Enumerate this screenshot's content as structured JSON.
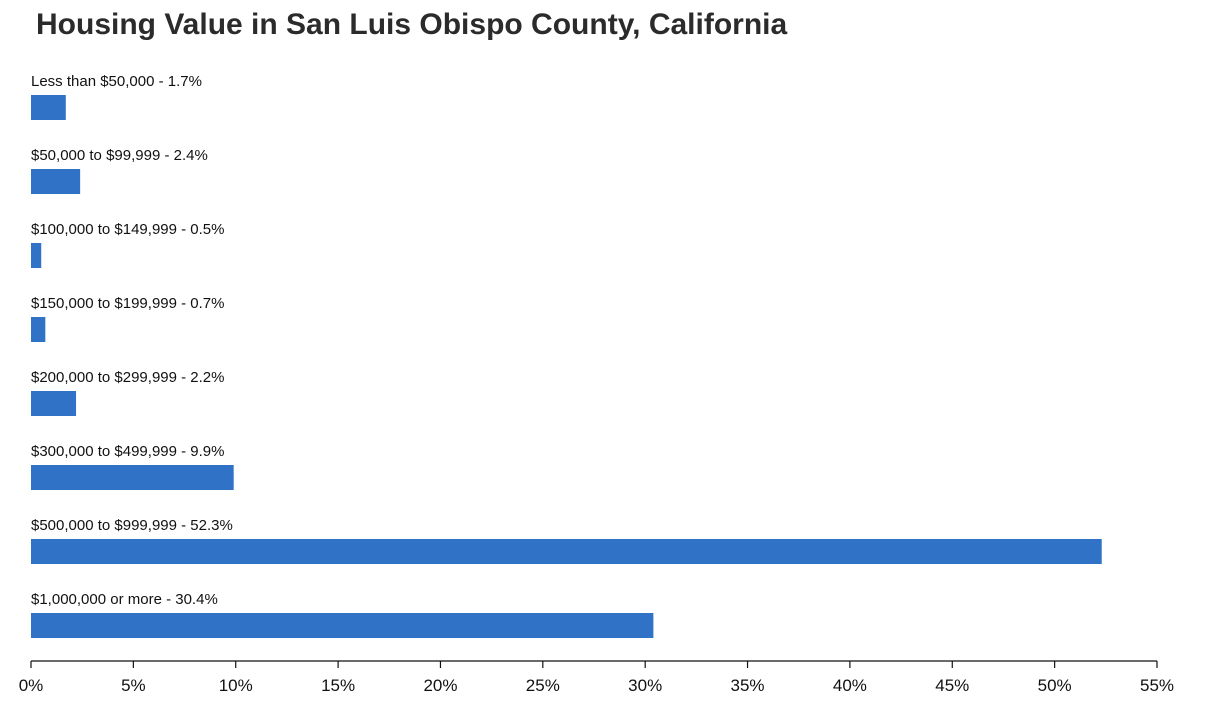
{
  "chart_data": {
    "type": "bar",
    "orientation": "horizontal",
    "title": "Housing Value in San Luis Obispo County, California",
    "categories": [
      "Less than $50,000",
      "$50,000 to $99,999",
      "$100,000 to $149,999",
      "$150,000 to $199,999",
      "$200,000 to $299,999",
      "$300,000 to $499,999",
      "$500,000 to $999,999",
      "$1,000,000 or more"
    ],
    "values": [
      1.7,
      2.4,
      0.5,
      0.7,
      2.2,
      9.9,
      52.3,
      30.4
    ],
    "bar_labels": [
      "Less than $50,000 - 1.7%",
      "$50,000 to $99,999 - 2.4%",
      "$100,000 to $149,999 - 0.5%",
      "$150,000 to $199,999 - 0.7%",
      "$200,000 to $299,999 - 2.2%",
      "$300,000 to $499,999 - 9.9%",
      "$500,000 to $999,999 - 52.3%",
      "$1,000,000 or more - 30.4%"
    ],
    "xlim": [
      0,
      55
    ],
    "xticks": [
      0,
      5,
      10,
      15,
      20,
      25,
      30,
      35,
      40,
      45,
      50,
      55
    ],
    "xtick_labels": [
      "0%",
      "5%",
      "10%",
      "15%",
      "20%",
      "25%",
      "30%",
      "35%",
      "40%",
      "45%",
      "50%",
      "55%"
    ],
    "xlabel": "",
    "ylabel": "",
    "grid": false,
    "legend": "none",
    "bar_color": "#3072c6",
    "axis_color": "#111111"
  }
}
